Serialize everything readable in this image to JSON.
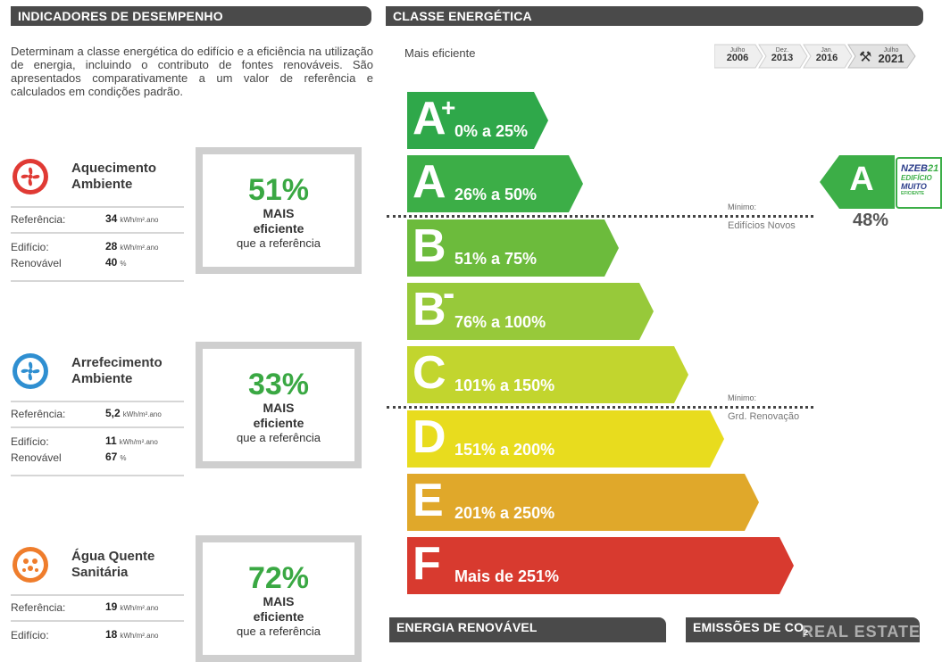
{
  "left_header": "INDICADORES DE DESEMPENHO",
  "right_header": "CLASSE ENERGÉTICA",
  "intro": "Determinam a classe energética do edifício e a eficiência na utilização de energia, incluindo o contributo de fontes renováveis. São apresentados comparativamente a um valor de referência e calculados em condições padrão.",
  "indicators": [
    {
      "title1": "Aquecimento",
      "title2": "Ambiente",
      "ref_label": "Referência:",
      "ref_value": "34",
      "unit": "kWh/m².ano",
      "bld_label": "Edifício:",
      "bld_value": "28",
      "ren_label": "Renovável",
      "ren_value": "40",
      "ren_unit": "%",
      "pct": "51%",
      "l1": "MAIS",
      "l2": "eficiente",
      "l3": "que a referência",
      "color": "#e03a34",
      "icon": "fan-icon"
    },
    {
      "title1": "Arrefecimento",
      "title2": "Ambiente",
      "ref_label": "Referência:",
      "ref_value": "5,2",
      "unit": "kWh/m².ano",
      "bld_label": "Edifício:",
      "bld_value": "11",
      "ren_label": "Renovável",
      "ren_value": "67",
      "ren_unit": "%",
      "pct": "33%",
      "l1": "MAIS",
      "l2": "eficiente",
      "l3": "que a referência",
      "color": "#2f8fd1",
      "icon": "fan-icon"
    },
    {
      "title1": "Água Quente",
      "title2": "Sanitária",
      "ref_label": "Referência:",
      "ref_value": "19",
      "unit": "kWh/m².ano",
      "bld_label": "Edifício:",
      "bld_value": "18",
      "pct": "72%",
      "l1": "MAIS",
      "l2": "eficiente",
      "l3": "que a referência",
      "color": "#ef7d2c",
      "icon": "water-drops-icon"
    }
  ],
  "mais_eficiente": "Mais eficiente",
  "dates": [
    {
      "top": "Julho",
      "year": "2006"
    },
    {
      "top": "Dez.",
      "year": "2013"
    },
    {
      "top": "Jan.",
      "year": "2016"
    },
    {
      "top": "Julho",
      "year": "2021"
    }
  ],
  "classes": [
    {
      "letter": "A",
      "sup": "+",
      "range": "0% a 25%",
      "color": "#2fa84a"
    },
    {
      "letter": "A",
      "sup": "",
      "range": "26% a 50%",
      "color": "#3cae47"
    },
    {
      "letter": "B",
      "sup": "",
      "range": "51% a 75%",
      "color": "#6cbb3c"
    },
    {
      "letter": "B",
      "sup": "-",
      "range": "76% a 100%",
      "color": "#97c93a"
    },
    {
      "letter": "C",
      "sup": "",
      "range": "101% a 150%",
      "color": "#c2d52e"
    },
    {
      "letter": "D",
      "sup": "",
      "range": "151% a 200%",
      "color": "#e8dc1e"
    },
    {
      "letter": "E",
      "sup": "",
      "range": "201% a 250%",
      "color": "#e0a82a"
    },
    {
      "letter": "F",
      "sup": "",
      "range": "Mais de 251%",
      "color": "#d83a2f"
    }
  ],
  "min_new_label": "Mínimo:",
  "min_new": "Edifícios Novos",
  "min_reno_label": "Mínimo:",
  "min_reno": "Grd. Renovação",
  "current_class": "A",
  "current_pct": "48%",
  "nzeb": {
    "l1": "NZEB",
    "l1b": "21",
    "l2": "EDIFÍCIO",
    "l3": "MUITO",
    "l4": "EFICIENTE"
  },
  "bottom_left_header": "ENERGIA RENOVÁVEL",
  "bottom_right_header": "EMISSÕES DE CO",
  "bottom_right_sub": "2",
  "watermark": "REAL ESTATE"
}
